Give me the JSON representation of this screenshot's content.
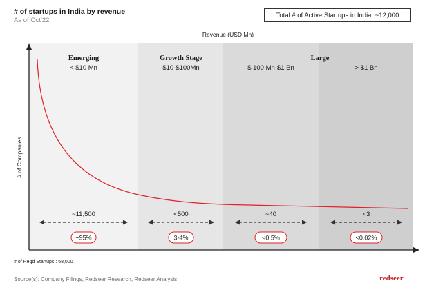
{
  "header": {
    "title": "# of startups in India by revenue",
    "subtitle": "As of Oct'22",
    "total_label": "Total # of Active Startups in India: ~12,000"
  },
  "chart_data": {
    "type": "line",
    "title": "# of startups in India by revenue",
    "xlabel": "Revenue (USD Mn)",
    "ylabel": "# of Companies",
    "grid": false,
    "segments": [
      {
        "stage": "Emerging",
        "range": "< $10 Mn",
        "count": "~11,500",
        "share": "~95%",
        "shade": "#f2f2f2"
      },
      {
        "stage": "Growth Stage",
        "range": "$10-$100Mn",
        "count": "<500",
        "share": "3-4%",
        "shade": "#e6e6e6"
      },
      {
        "stage": "Large",
        "range": "$ 100 Mn-$1 Bn",
        "count": "~40",
        "share": "<0.5%",
        "shade": "#dadada"
      },
      {
        "stage": "",
        "range": "> $1 Bn",
        "count": "<3",
        "share": "<0.02%",
        "shade": "#cfcfcf"
      }
    ],
    "curve_color": "#e0202a",
    "arrow_color": "#333333"
  },
  "footer": {
    "footnote": "# of Regd Startups : 68,000",
    "source": "Source(s): Company Filings, Redseer Research, Redseer Analysis",
    "brand": "redseer"
  }
}
